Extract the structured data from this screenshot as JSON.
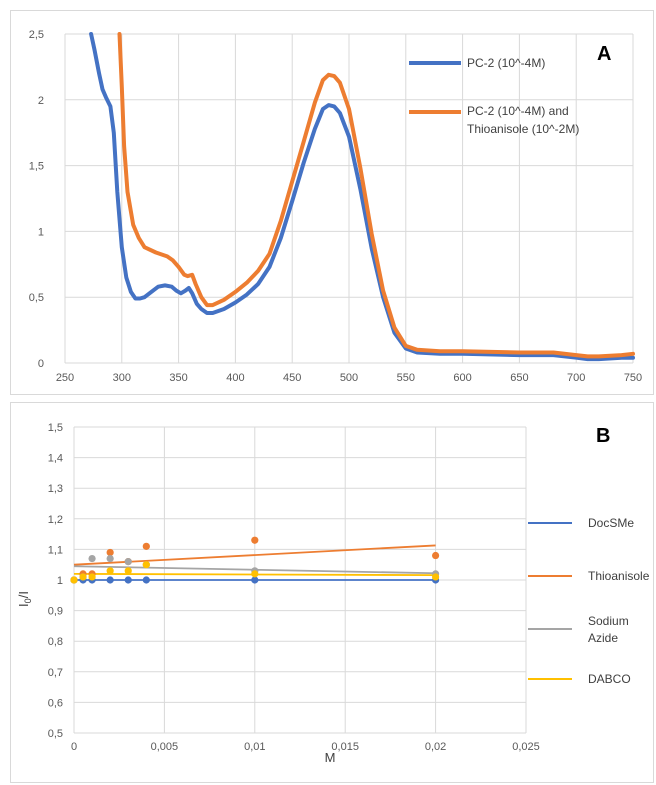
{
  "chart_data": [
    {
      "type": "line",
      "panel_label": "A",
      "x_ticks": [
        "250",
        "300",
        "350",
        "400",
        "450",
        "500",
        "550",
        "600",
        "650",
        "700",
        "750"
      ],
      "y_ticks": [
        "0",
        "0,5",
        "1",
        "1,5",
        "2",
        "2,5"
      ],
      "xlim": [
        250,
        750
      ],
      "ylim": [
        0,
        2.5
      ],
      "grid": true,
      "legend_position": "top-right",
      "series": [
        {
          "name": "PC-2 (10^-4M)",
          "color": "#4472c4",
          "points": [
            [
              273,
              2.5
            ],
            [
              276,
              2.38
            ],
            [
              280,
              2.2
            ],
            [
              283,
              2.08
            ],
            [
              286,
              2.02
            ],
            [
              290,
              1.95
            ],
            [
              293,
              1.75
            ],
            [
              296,
              1.3
            ],
            [
              300,
              0.88
            ],
            [
              304,
              0.65
            ],
            [
              308,
              0.54
            ],
            [
              312,
              0.49
            ],
            [
              316,
              0.49
            ],
            [
              320,
              0.5
            ],
            [
              326,
              0.54
            ],
            [
              332,
              0.58
            ],
            [
              338,
              0.59
            ],
            [
              344,
              0.58
            ],
            [
              348,
              0.55
            ],
            [
              352,
              0.53
            ],
            [
              356,
              0.55
            ],
            [
              359,
              0.57
            ],
            [
              362,
              0.53
            ],
            [
              366,
              0.45
            ],
            [
              370,
              0.41
            ],
            [
              375,
              0.38
            ],
            [
              380,
              0.38
            ],
            [
              390,
              0.41
            ],
            [
              400,
              0.46
            ],
            [
              410,
              0.52
            ],
            [
              420,
              0.6
            ],
            [
              430,
              0.73
            ],
            [
              440,
              0.95
            ],
            [
              450,
              1.23
            ],
            [
              460,
              1.52
            ],
            [
              470,
              1.78
            ],
            [
              477,
              1.93
            ],
            [
              482,
              1.96
            ],
            [
              487,
              1.95
            ],
            [
              492,
              1.9
            ],
            [
              500,
              1.72
            ],
            [
              510,
              1.32
            ],
            [
              520,
              0.87
            ],
            [
              530,
              0.5
            ],
            [
              540,
              0.23
            ],
            [
              550,
              0.11
            ],
            [
              560,
              0.08
            ],
            [
              580,
              0.07
            ],
            [
              600,
              0.07
            ],
            [
              650,
              0.06
            ],
            [
              680,
              0.06
            ],
            [
              700,
              0.04
            ],
            [
              710,
              0.03
            ],
            [
              720,
              0.03
            ],
            [
              740,
              0.04
            ],
            [
              750,
              0.04
            ]
          ]
        },
        {
          "name": "PC-2 (10^-4M) and Thioanisole (10^-2M)",
          "color": "#ed7d31",
          "points": [
            [
              298,
              2.5
            ],
            [
              300,
              2.1
            ],
            [
              302,
              1.65
            ],
            [
              305,
              1.3
            ],
            [
              310,
              1.05
            ],
            [
              315,
              0.95
            ],
            [
              320,
              0.88
            ],
            [
              330,
              0.84
            ],
            [
              340,
              0.81
            ],
            [
              345,
              0.78
            ],
            [
              350,
              0.73
            ],
            [
              355,
              0.67
            ],
            [
              358,
              0.66
            ],
            [
              362,
              0.67
            ],
            [
              365,
              0.6
            ],
            [
              370,
              0.5
            ],
            [
              375,
              0.44
            ],
            [
              380,
              0.44
            ],
            [
              390,
              0.48
            ],
            [
              400,
              0.54
            ],
            [
              410,
              0.61
            ],
            [
              420,
              0.7
            ],
            [
              430,
              0.83
            ],
            [
              440,
              1.08
            ],
            [
              450,
              1.38
            ],
            [
              460,
              1.68
            ],
            [
              470,
              1.98
            ],
            [
              477,
              2.15
            ],
            [
              482,
              2.19
            ],
            [
              487,
              2.18
            ],
            [
              492,
              2.13
            ],
            [
              500,
              1.93
            ],
            [
              510,
              1.48
            ],
            [
              520,
              0.98
            ],
            [
              530,
              0.55
            ],
            [
              540,
              0.27
            ],
            [
              550,
              0.13
            ],
            [
              560,
              0.1
            ],
            [
              580,
              0.09
            ],
            [
              600,
              0.09
            ],
            [
              650,
              0.08
            ],
            [
              680,
              0.08
            ],
            [
              700,
              0.06
            ],
            [
              710,
              0.05
            ],
            [
              720,
              0.05
            ],
            [
              740,
              0.06
            ],
            [
              750,
              0.07
            ]
          ]
        }
      ]
    },
    {
      "type": "scatter",
      "panel_label": "B",
      "ylabel_main": "I",
      "ylabel_sub": "0",
      "ylabel_tail": "/I",
      "xlabel": "M",
      "x_ticks": [
        "0",
        "0,005",
        "0,01",
        "0,015",
        "0,02",
        "0,025"
      ],
      "y_ticks": [
        "0,5",
        "0,6",
        "0,7",
        "0,8",
        "0,9",
        "1",
        "1,1",
        "1,2",
        "1,3",
        "1,4",
        "1,5"
      ],
      "xlim": [
        0,
        0.025
      ],
      "ylim": [
        0.5,
        1.5
      ],
      "grid": true,
      "legend_position": "right",
      "series": [
        {
          "name": "DocSMe",
          "color": "#4472c4",
          "points": [
            [
              0,
              1.0
            ],
            [
              0.0005,
              1.0
            ],
            [
              0.001,
              1.0
            ],
            [
              0.002,
              1.0
            ],
            [
              0.003,
              1.0
            ],
            [
              0.004,
              1.0
            ],
            [
              0.01,
              1.0
            ],
            [
              0.02,
              1.0
            ]
          ],
          "trend": [
            [
              0,
              1.0
            ],
            [
              0.02,
              1.0
            ]
          ]
        },
        {
          "name": "Thioanisole",
          "color": "#ed7d31",
          "points": [
            [
              0,
              1.0
            ],
            [
              0.0005,
              1.02
            ],
            [
              0.001,
              1.02
            ],
            [
              0.002,
              1.09
            ],
            [
              0.003,
              1.06
            ],
            [
              0.004,
              1.11
            ],
            [
              0.01,
              1.13
            ],
            [
              0.02,
              1.08
            ]
          ],
          "trend": [
            [
              0,
              1.05
            ],
            [
              0.02,
              1.113
            ]
          ]
        },
        {
          "name": "Sodium Azide",
          "color": "#a5a5a5",
          "points": [
            [
              0,
              1.0
            ],
            [
              0.0005,
              1.01
            ],
            [
              0.001,
              1.07
            ],
            [
              0.002,
              1.07
            ],
            [
              0.003,
              1.06
            ],
            [
              0.004,
              1.05
            ],
            [
              0.01,
              1.03
            ],
            [
              0.02,
              1.02
            ]
          ],
          "trend": [
            [
              0,
              1.045
            ],
            [
              0.02,
              1.022
            ]
          ]
        },
        {
          "name": "DABCO",
          "color": "#ffc000",
          "points": [
            [
              0,
              1.0
            ],
            [
              0.0005,
              1.01
            ],
            [
              0.001,
              1.01
            ],
            [
              0.002,
              1.03
            ],
            [
              0.003,
              1.03
            ],
            [
              0.004,
              1.05
            ],
            [
              0.01,
              1.02
            ],
            [
              0.02,
              1.01
            ]
          ],
          "trend": [
            [
              0,
              1.02
            ],
            [
              0.02,
              1.016
            ]
          ]
        }
      ]
    }
  ]
}
